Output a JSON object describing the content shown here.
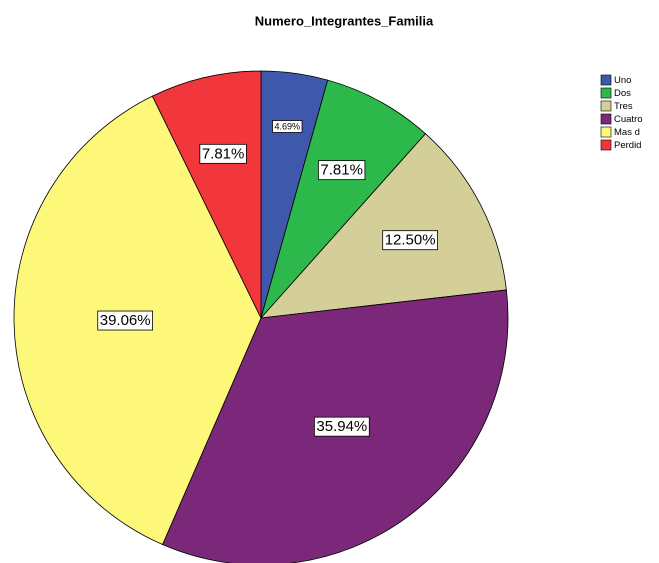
{
  "chart_data": {
    "type": "pie",
    "title": "Numero_Integrantes_Familia",
    "categories": [
      "Uno",
      "Dos",
      "Tres",
      "Cuatro",
      "Mas d",
      "Perdid"
    ],
    "values": [
      4.69,
      7.81,
      12.5,
      35.94,
      39.06,
      7.81
    ],
    "value_labels": [
      "4.69%",
      "7.81%",
      "12.50%",
      "35.94%",
      "39.06%",
      "7.81%"
    ],
    "colors": [
      "#3e58ac",
      "#2db84c",
      "#d4cf98",
      "#7b287a",
      "#fdf77a",
      "#f2373c"
    ],
    "legend": "right"
  }
}
